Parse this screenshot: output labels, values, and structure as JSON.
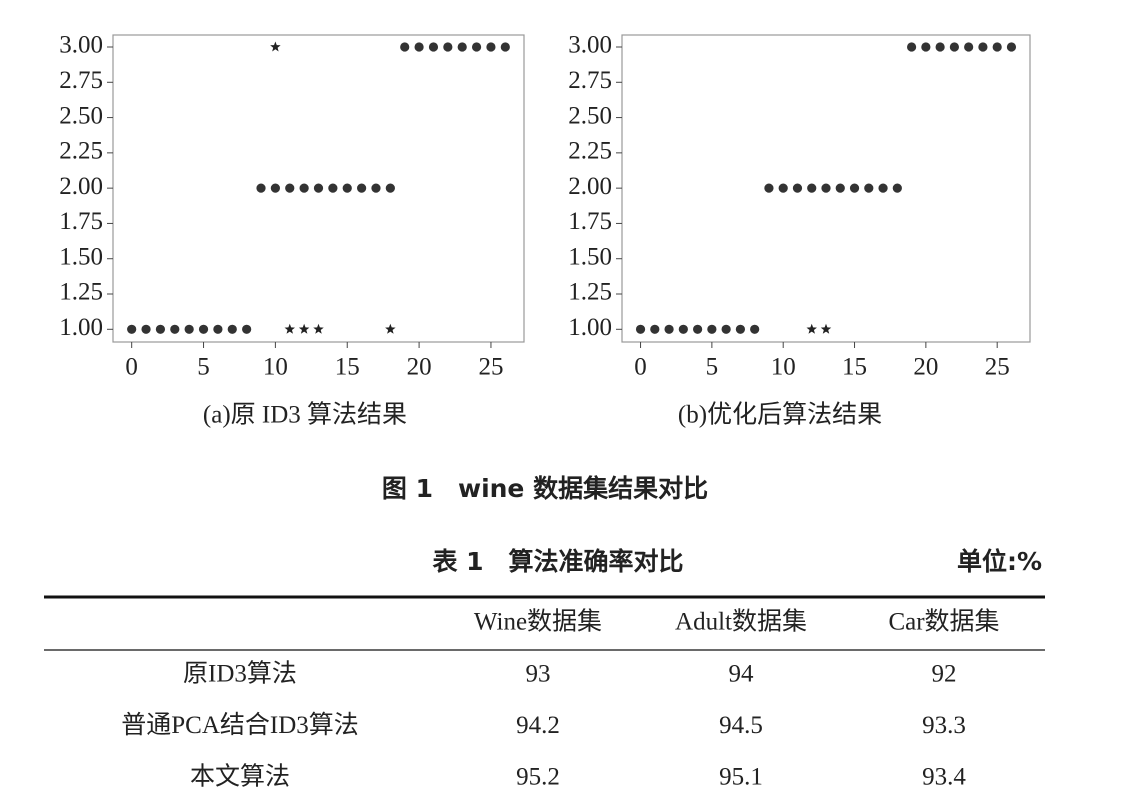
{
  "chart_data": [
    {
      "type": "scatter",
      "title": "(a)原 ID3 算法结果",
      "xlim": [
        -1.3,
        27.3
      ],
      "xticks": [
        0,
        5,
        10,
        15,
        20,
        25
      ],
      "ylim": [
        0.91,
        3.085
      ],
      "yticks": [
        {
          "value": 1,
          "label": "1.00"
        },
        {
          "value": 1.25,
          "label": "1.25"
        },
        {
          "value": 1.5,
          "label": "1.50"
        },
        {
          "value": 1.75,
          "label": "1.75"
        },
        {
          "value": 2,
          "label": "2.00"
        },
        {
          "value": 2.25,
          "label": "2.25"
        },
        {
          "value": 2.5,
          "label": "2.50"
        },
        {
          "value": 2.75,
          "label": "2.75"
        },
        {
          "value": 3,
          "label": "3.00"
        }
      ],
      "series": [
        {
          "marker": "circle",
          "color": "#333333",
          "x": [
            0,
            1,
            2,
            3,
            4,
            5,
            6,
            7,
            8,
            9,
            10,
            11,
            12,
            13,
            14,
            15,
            16,
            17,
            18,
            19,
            20,
            21,
            22,
            23,
            24,
            25,
            26
          ],
          "values": [
            1,
            1,
            1,
            1,
            1,
            1,
            1,
            1,
            1,
            2,
            2,
            2,
            2,
            2,
            2,
            2,
            2,
            2,
            2,
            3,
            3,
            3,
            3,
            3,
            3,
            3,
            3
          ]
        },
        {
          "marker": "star",
          "color": "#222222",
          "x": [
            10,
            11,
            12,
            13,
            18
          ],
          "values": [
            3,
            1,
            1,
            1,
            1
          ]
        }
      ]
    },
    {
      "type": "scatter",
      "title": "(b)优化后算法结果",
      "xlim": [
        -1.3,
        27.3
      ],
      "xticks": [
        0,
        5,
        10,
        15,
        20,
        25
      ],
      "ylim": [
        0.91,
        3.085
      ],
      "yticks": [
        {
          "value": 1,
          "label": "1.00"
        },
        {
          "value": 1.25,
          "label": "1.25"
        },
        {
          "value": 1.5,
          "label": "1.50"
        },
        {
          "value": 1.75,
          "label": "1.75"
        },
        {
          "value": 2,
          "label": "2.00"
        },
        {
          "value": 2.25,
          "label": "2.25"
        },
        {
          "value": 2.5,
          "label": "2.50"
        },
        {
          "value": 2.75,
          "label": "2.75"
        },
        {
          "value": 3,
          "label": "3.00"
        }
      ],
      "series": [
        {
          "marker": "circle",
          "color": "#333333",
          "x": [
            0,
            1,
            2,
            3,
            4,
            5,
            6,
            7,
            8,
            9,
            10,
            11,
            12,
            13,
            14,
            15,
            16,
            17,
            18,
            19,
            20,
            21,
            22,
            23,
            24,
            25,
            26
          ],
          "values": [
            1,
            1,
            1,
            1,
            1,
            1,
            1,
            1,
            1,
            2,
            2,
            2,
            2,
            2,
            2,
            2,
            2,
            2,
            2,
            3,
            3,
            3,
            3,
            3,
            3,
            3,
            3
          ]
        },
        {
          "marker": "star",
          "color": "#222222",
          "x": [
            12,
            13
          ],
          "values": [
            1,
            1
          ]
        }
      ]
    }
  ],
  "figure_caption": "图 1　wine 数据集结果对比",
  "table": {
    "title": "表 1　算法准确率对比",
    "unit": "单位:%",
    "columns": [
      "Wine数据集",
      "Adult数据集",
      "Car数据集"
    ],
    "rows": [
      {
        "label": "原ID3算法",
        "values": [
          93,
          94,
          92
        ]
      },
      {
        "label": "普通PCA结合ID3算法",
        "values": [
          94.2,
          94.5,
          93.3
        ]
      },
      {
        "label": "本文算法",
        "values": [
          95.2,
          95.1,
          93.4
        ]
      }
    ]
  }
}
